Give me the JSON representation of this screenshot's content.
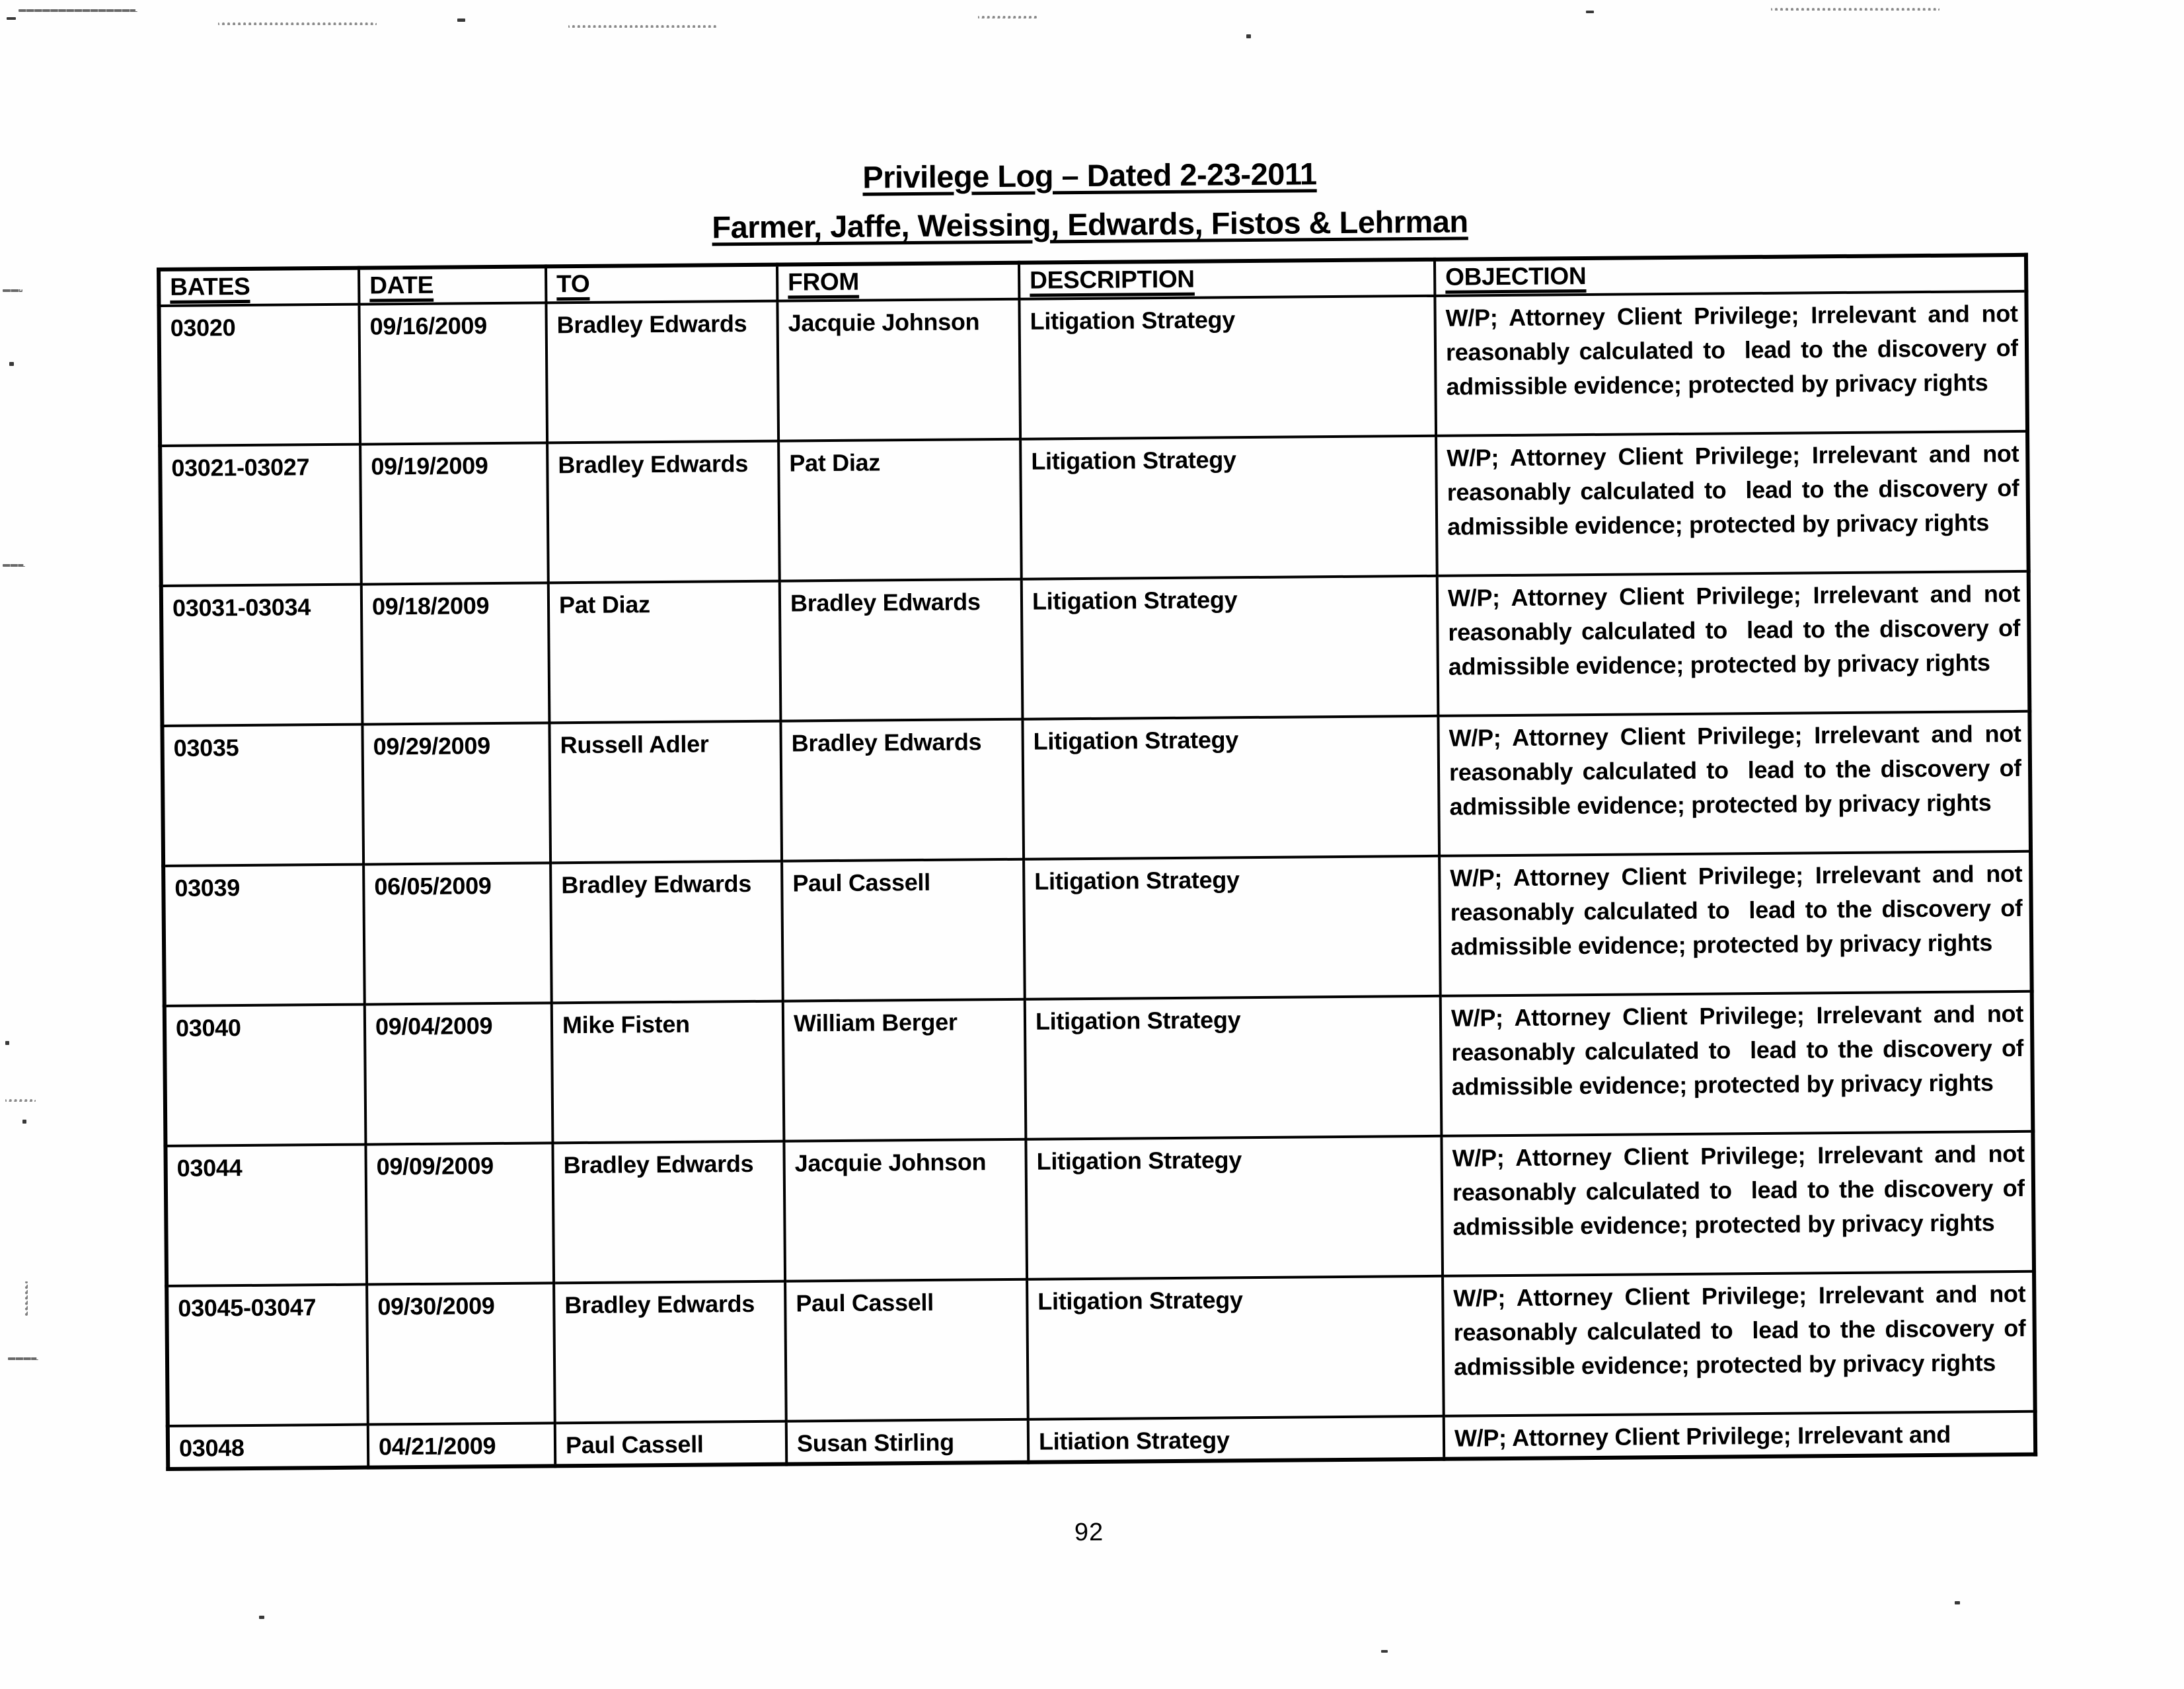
{
  "document": {
    "title_line1": "Privilege Log – Dated 2-23-2011",
    "title_line2": "Farmer, Jaffe, Weissing, Edwards, Fistos & Lehrman",
    "page_number": "92"
  },
  "colors": {
    "ink": "#000000",
    "paper": "#fefefe"
  },
  "table": {
    "headers": [
      "BATES",
      "DATE",
      "TO",
      "FROM",
      "DESCRIPTION",
      "OBJECTION"
    ],
    "standard_objection": "W/P; Attorney Client Privilege; Irrelevant and not reasonably calculated to  lead to the discovery of admissible evidence; protected by privacy rights",
    "rows": [
      {
        "bates": "03020",
        "date": "09/16/2009",
        "to": "Bradley Edwards",
        "from": "Jacquie Johnson",
        "description": "Litigation Strategy",
        "objection": "W/P; Attorney Client Privilege; Irrelevant and not reasonably calculated to  lead to the discovery of admissible evidence; protected by privacy rights",
        "truncated": false
      },
      {
        "bates": "03021-03027",
        "date": "09/19/2009",
        "to": "Bradley Edwards",
        "from": "Pat Diaz",
        "description": "Litigation Strategy",
        "objection": "W/P; Attorney Client Privilege; Irrelevant and not reasonably calculated to  lead to the discovery of admissible evidence; protected by privacy rights",
        "truncated": false
      },
      {
        "bates": "03031-03034",
        "date": "09/18/2009",
        "to": "Pat Diaz",
        "from": "Bradley Edwards",
        "description": "Litigation Strategy",
        "objection": "W/P; Attorney Client Privilege; Irrelevant and not reasonably calculated to  lead to the discovery of admissible evidence; protected by privacy rights",
        "truncated": false
      },
      {
        "bates": "03035",
        "date": "09/29/2009",
        "to": "Russell Adler",
        "from": "Bradley Edwards",
        "description": "Litigation Strategy",
        "objection": "W/P; Attorney Client Privilege; Irrelevant and not reasonably calculated to  lead to the discovery of admissible evidence; protected by privacy rights",
        "truncated": false
      },
      {
        "bates": "03039",
        "date": "06/05/2009",
        "to": "Bradley Edwards",
        "from": "Paul Cassell",
        "description": "Litigation Strategy",
        "objection": "W/P; Attorney Client Privilege; Irrelevant and not reasonably calculated to  lead to the discovery of admissible evidence; protected by privacy rights",
        "truncated": false
      },
      {
        "bates": "03040",
        "date": "09/04/2009",
        "to": "Mike Fisten",
        "from": "William Berger",
        "description": "Litigation Strategy",
        "objection": "W/P; Attorney Client Privilege; Irrelevant and not reasonably calculated to  lead to the discovery of admissible evidence; protected by privacy rights",
        "truncated": false
      },
      {
        "bates": "03044",
        "date": "09/09/2009",
        "to": "Bradley Edwards",
        "from": "Jacquie Johnson",
        "description": "Litigation Strategy",
        "objection": "W/P; Attorney Client Privilege; Irrelevant and not reasonably calculated to  lead to the discovery of admissible evidence; protected by privacy rights",
        "truncated": false
      },
      {
        "bates": "03045-03047",
        "date": "09/30/2009",
        "to": "Bradley Edwards",
        "from": "Paul Cassell",
        "description": "Litigation Strategy",
        "objection": "W/P; Attorney Client Privilege; Irrelevant and not reasonably calculated to  lead to the discovery of admissible evidence; protected by privacy rights",
        "truncated": false
      },
      {
        "bates": "03048",
        "date": "04/21/2009",
        "to": "Paul Cassell",
        "from": "Susan Stirling",
        "description": "Litiation Strategy",
        "objection": "W/P; Attorney Client Privilege; Irrelevant and",
        "truncated": true
      }
    ]
  }
}
